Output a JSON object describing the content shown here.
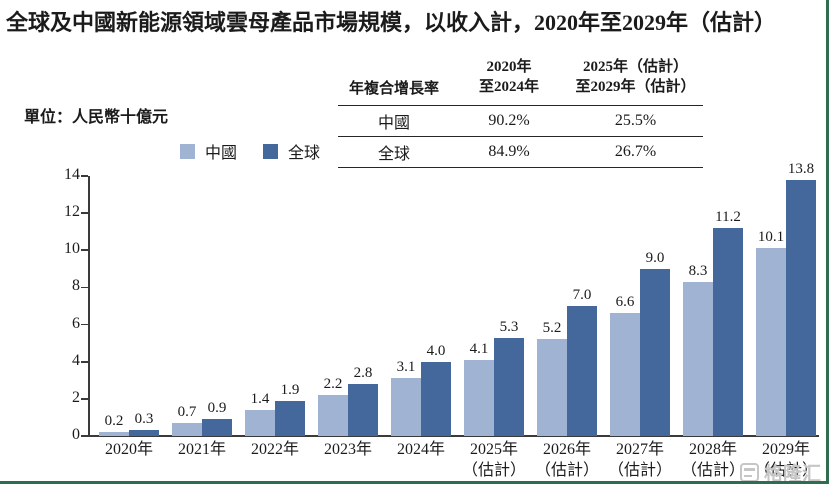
{
  "title": "全球及中國新能源領域雲母產品市場規模，以收入計，2020年至2029年（估計）",
  "unit_label": "單位：人民幣十億元",
  "cagr_table": {
    "header": {
      "col0": "年複合增長率",
      "col1_line1": "2020年",
      "col1_line2": "至2024年",
      "col2_line1": "2025年（估計）",
      "col2_line2": "至2029年（估計）"
    },
    "rows": [
      {
        "label": "中國",
        "v1": "90.2%",
        "v2": "25.5%"
      },
      {
        "label": "全球",
        "v1": "84.9%",
        "v2": "26.7%"
      }
    ]
  },
  "legend": [
    {
      "label": "中國",
      "color": "#a0b3d2"
    },
    {
      "label": "全球",
      "color": "#44679c"
    }
  ],
  "chart_data": {
    "type": "bar",
    "categories": [
      {
        "label": "2020年",
        "sublabel": ""
      },
      {
        "label": "2021年",
        "sublabel": ""
      },
      {
        "label": "2022年",
        "sublabel": ""
      },
      {
        "label": "2023年",
        "sublabel": ""
      },
      {
        "label": "2024年",
        "sublabel": ""
      },
      {
        "label": "2025年",
        "sublabel": "（估計）"
      },
      {
        "label": "2026年",
        "sublabel": "（估計）"
      },
      {
        "label": "2027年",
        "sublabel": "（估計）"
      },
      {
        "label": "2028年",
        "sublabel": "（估計）"
      },
      {
        "label": "2029年",
        "sublabel": "（估計）"
      }
    ],
    "series": [
      {
        "name": "中國",
        "color": "#a0b3d2",
        "values": [
          0.2,
          0.7,
          1.4,
          2.2,
          3.1,
          4.1,
          5.2,
          6.6,
          8.3,
          10.1
        ]
      },
      {
        "name": "全球",
        "color": "#44679c",
        "values": [
          0.3,
          0.9,
          1.9,
          2.8,
          4.0,
          5.3,
          7.0,
          9.0,
          11.2,
          13.8
        ]
      }
    ],
    "ylim": [
      0,
      14
    ],
    "yticks": [
      0,
      2,
      4,
      6,
      8,
      10,
      12,
      14
    ],
    "legend_position": "top",
    "grid": false
  },
  "colors": {
    "china_bar": "#a0b3d2",
    "global_bar": "#44679c",
    "axis": "#3a3a3a",
    "border_green": "#2e6e4e",
    "watermark_gray": "#c6c6c6"
  },
  "watermark": {
    "text": "格隆汇"
  }
}
